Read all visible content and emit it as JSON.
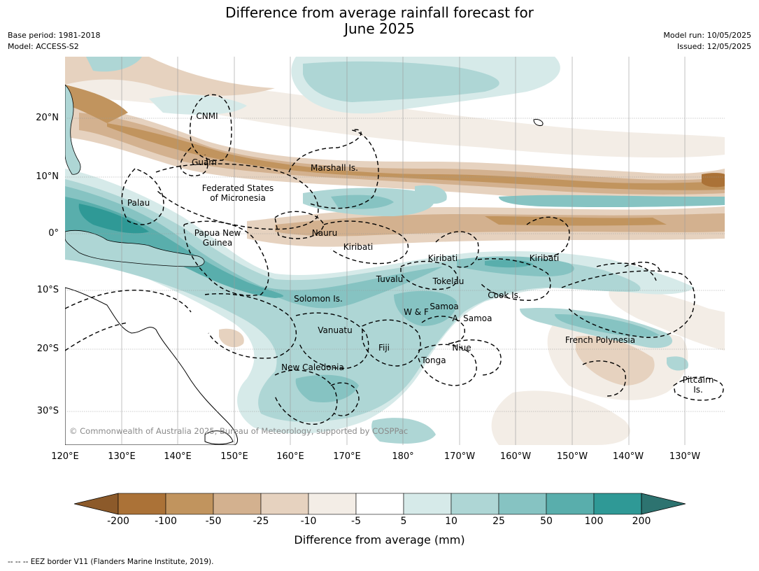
{
  "title": "Difference from average rainfall forecast for\nJune 2025",
  "title_line1": "Difference from average rainfall forecast for",
  "title_line2": "June 2025",
  "meta": {
    "base_period": "Base period: 1981-2018",
    "model": "Model: ACCESS-S2",
    "model_run": "Model run: 10/05/2025",
    "issued": "Issued: 12/05/2025"
  },
  "longitude_labels": [
    "120°E",
    "130°E",
    "140°E",
    "150°E",
    "160°E",
    "170°E",
    "180°",
    "170°W",
    "160°W",
    "150°W",
    "140°W",
    "130°W"
  ],
  "latitude_labels": [
    "20°N",
    "10°N",
    "0°",
    "10°S",
    "20°S",
    "30°S"
  ],
  "regions": [
    {
      "name": "CNMI"
    },
    {
      "name": "Guam"
    },
    {
      "name": "Marshall Is."
    },
    {
      "name": "Federated States of Micronesia",
      "line1": "Federated States",
      "line2": "of Micronesia"
    },
    {
      "name": "Palau"
    },
    {
      "name": "Papua New Guinea",
      "line1": "Papua New",
      "line2": "Guinea"
    },
    {
      "name": "Nauru"
    },
    {
      "name": "Kiribati (Gilbert)",
      "label": "Kiribati"
    },
    {
      "name": "Kiribati (Phoenix)",
      "label": "Kiribati"
    },
    {
      "name": "Kiribati (Line)",
      "label": "Kiribati"
    },
    {
      "name": "Tuvalu"
    },
    {
      "name": "Tokelau"
    },
    {
      "name": "Cook Is."
    },
    {
      "name": "Solomon Is."
    },
    {
      "name": "W & F"
    },
    {
      "name": "Samoa"
    },
    {
      "name": "A. Samoa"
    },
    {
      "name": "Vanuatu"
    },
    {
      "name": "Fiji"
    },
    {
      "name": "Niue"
    },
    {
      "name": "Tonga"
    },
    {
      "name": "French Polynesia"
    },
    {
      "name": "New Caledonia"
    },
    {
      "name": "Pitcairn Is.",
      "line1": "Pitcairn",
      "line2": "Is."
    }
  ],
  "copyright": "© Commonwealth of Australia 2025, Bureau of Meteorology, supported by COSPPac",
  "colorbar": {
    "title": "Difference from average (mm)",
    "ticks": [
      "-200",
      "-100",
      "-50",
      "-25",
      "-10",
      "-5",
      "5",
      "10",
      "25",
      "50",
      "100",
      "200"
    ],
    "colors": {
      "under": "#8c5a2a",
      "bins": [
        "#ab7237",
        "#c1945e",
        "#d3b18f",
        "#e6d2bf",
        "#f3ede6",
        "#ffffff",
        "#d6eae9",
        "#aed6d5",
        "#86c3c2",
        "#59aeac",
        "#2f9996"
      ],
      "over": "#2d7370"
    }
  },
  "footnote": "--  --  -- EEZ border V11 (Flanders Marine Institute, 2019).",
  "colors": {
    "dry": "#c69a6a",
    "wet": "#5aadab",
    "gridline": "#aaaaaa",
    "eez": "#000000"
  }
}
